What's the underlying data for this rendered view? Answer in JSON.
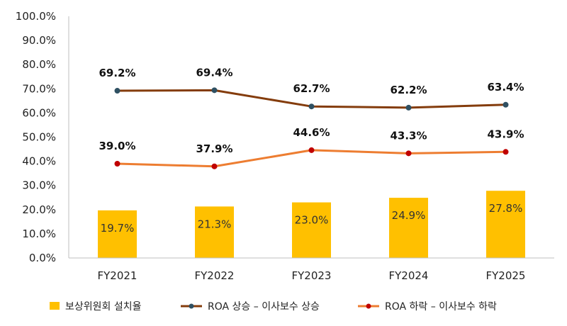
{
  "chart_data": {
    "type": "bar",
    "categories": [
      "FY2021",
      "FY2022",
      "FY2023",
      "FY2024",
      "FY2025"
    ],
    "ylim": [
      0,
      100
    ],
    "yticks": [
      "0.0%",
      "10.0%",
      "20.0%",
      "30.0%",
      "40.0%",
      "50.0%",
      "60.0%",
      "70.0%",
      "80.0%",
      "90.0%",
      "100.0%"
    ],
    "grid": false,
    "legend_position": "bottom",
    "series": [
      {
        "name": "보상위원회 설치율",
        "kind": "bar",
        "color": "#FFC000",
        "values": [
          19.7,
          21.3,
          23.0,
          24.9,
          27.8
        ],
        "labels": [
          "19.7%",
          "21.3%",
          "23.0%",
          "24.9%",
          "27.8%"
        ]
      },
      {
        "name": "ROA 상승 – 이사보수 상승",
        "kind": "line",
        "color": "#843C0C",
        "marker_color": "#2F5062",
        "values": [
          69.2,
          69.4,
          62.7,
          62.2,
          63.4
        ],
        "labels": [
          "69.2%",
          "69.4%",
          "62.7%",
          "62.2%",
          "63.4%"
        ]
      },
      {
        "name": "ROA 하락 – 이사보수 하락",
        "kind": "line",
        "color": "#ED7D31",
        "marker_color": "#C00000",
        "values": [
          39.0,
          37.9,
          44.6,
          43.3,
          43.9
        ],
        "labels": [
          "39.0%",
          "37.9%",
          "44.6%",
          "43.3%",
          "43.9%"
        ]
      }
    ]
  }
}
